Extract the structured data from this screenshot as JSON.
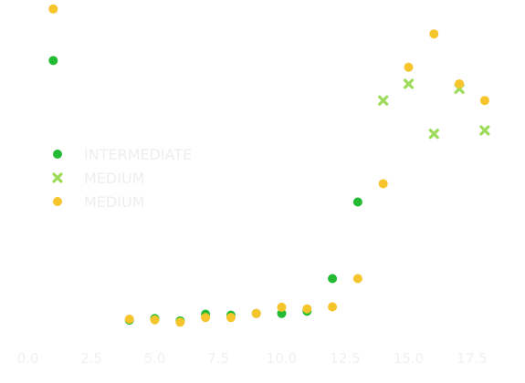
{
  "chart_data": {
    "type": "scatter",
    "title": "",
    "xlabel": "",
    "ylabel": "",
    "xlim": [
      0,
      19
    ],
    "ylim": [
      0,
      1
    ],
    "x_ticks": [
      "0.0",
      "2.5",
      "5.0",
      "7.5",
      "10.0",
      "12.5",
      "15.0",
      "17.5"
    ],
    "y_ticks": [],
    "grid": false,
    "legend_placement": "center-left",
    "series": [
      {
        "name": "INTERMEDIATE",
        "marker": "circle",
        "color": "#22bb33",
        "points": [
          {
            "x": 1,
            "y": 0.84
          },
          {
            "x": 4,
            "y": 0.06
          },
          {
            "x": 5,
            "y": 0.065
          },
          {
            "x": 6,
            "y": 0.058
          },
          {
            "x": 7,
            "y": 0.078
          },
          {
            "x": 8,
            "y": 0.075
          },
          {
            "x": 9,
            "y": 0.08
          },
          {
            "x": 10,
            "y": 0.08
          },
          {
            "x": 11,
            "y": 0.087
          },
          {
            "x": 12,
            "y": 0.185
          },
          {
            "x": 13,
            "y": 0.415
          }
        ]
      },
      {
        "name": "MEDIUM",
        "marker": "x",
        "color": "#9ddc5a",
        "points": [
          {
            "x": 14,
            "y": 0.72
          },
          {
            "x": 15,
            "y": 0.77
          },
          {
            "x": 16,
            "y": 0.62
          },
          {
            "x": 17,
            "y": 0.755
          },
          {
            "x": 18,
            "y": 0.63
          }
        ]
      },
      {
        "name": "MEDIUM",
        "marker": "circle",
        "color": "#f5c52b",
        "points": [
          {
            "x": 1,
            "y": 0.995
          },
          {
            "x": 4,
            "y": 0.063
          },
          {
            "x": 5,
            "y": 0.061
          },
          {
            "x": 6,
            "y": 0.054
          },
          {
            "x": 7,
            "y": 0.068
          },
          {
            "x": 8,
            "y": 0.068
          },
          {
            "x": 9,
            "y": 0.08
          },
          {
            "x": 10,
            "y": 0.099
          },
          {
            "x": 11,
            "y": 0.094
          },
          {
            "x": 12,
            "y": 0.1
          },
          {
            "x": 13,
            "y": 0.185
          },
          {
            "x": 14,
            "y": 0.47
          },
          {
            "x": 15,
            "y": 0.82
          },
          {
            "x": 16,
            "y": 0.92
          },
          {
            "x": 17,
            "y": 0.77
          },
          {
            "x": 18,
            "y": 0.72
          }
        ]
      }
    ]
  }
}
